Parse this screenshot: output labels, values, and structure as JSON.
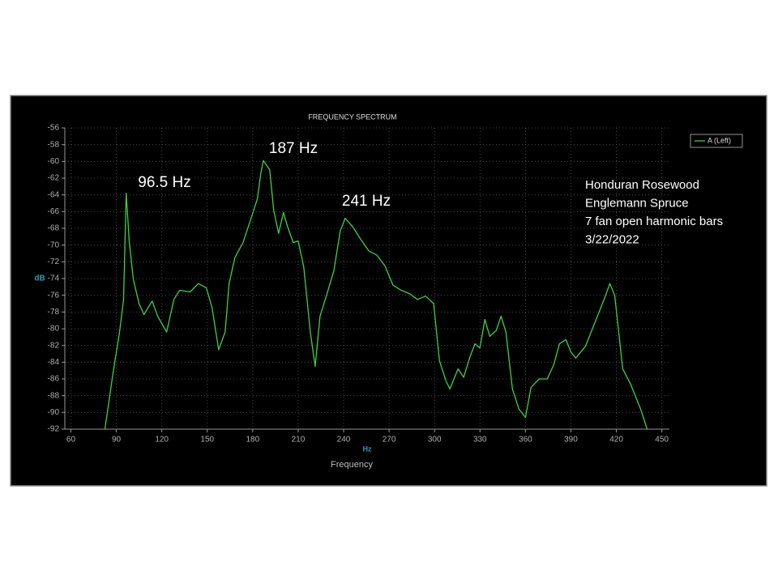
{
  "chart_data": {
    "type": "line",
    "title": "FREQUENCY SPECTRUM",
    "xlabel": "Frequency",
    "xunit": "Hz",
    "ylabel": "dB",
    "xlim": [
      56,
      455
    ],
    "ylim": [
      -92,
      -56
    ],
    "xticks": [
      60,
      90,
      120,
      150,
      180,
      210,
      240,
      270,
      300,
      330,
      360,
      390,
      420,
      450
    ],
    "yticks": [
      -56,
      -58,
      -60,
      -62,
      -64,
      -66,
      -68,
      -70,
      -72,
      -74,
      -76,
      -78,
      -80,
      -82,
      -84,
      -86,
      -88,
      -90,
      -92
    ],
    "grid": true,
    "legend": "right",
    "series": [
      {
        "name": "A (Left)",
        "color": "#3fd13f",
        "x": [
          82.5,
          87.9,
          92.1,
          94.8,
          96.5,
          98.6,
          101.2,
          105,
          108.2,
          113.6,
          117.3,
          123.2,
          128,
          131.8,
          138.7,
          144.1,
          149.4,
          153.2,
          157.5,
          161.8,
          164.4,
          168.2,
          173.6,
          178.9,
          183.2,
          185.3,
          187,
          191.2,
          193.9,
          197.1,
          200.3,
          203,
          206.8,
          210,
          213.7,
          218,
          221.2,
          224.4,
          228.7,
          233.5,
          237.8,
          241,
          245.9,
          251.2,
          256.6,
          261.9,
          267.3,
          272.6,
          278,
          283.4,
          288.7,
          294.1,
          299.4,
          303.2,
          307.5,
          310.1,
          315.5,
          319.2,
          323.5,
          326.7,
          329.9,
          333.2,
          336.4,
          340.7,
          343.9,
          347.1,
          351.4,
          355.7,
          360,
          363.7,
          369.1,
          374.4,
          378.7,
          382.5,
          386.7,
          390,
          393.2,
          399.6,
          405.5,
          411.9,
          415.7,
          418.9,
          424.2,
          429.6,
          436,
          440.3
        ],
        "values": [
          -92,
          -85.2,
          -80.4,
          -76.5,
          -63.8,
          -69.7,
          -74.1,
          -77,
          -78.3,
          -76.7,
          -78.5,
          -80.4,
          -76.5,
          -75.4,
          -75.6,
          -74.6,
          -75.1,
          -77.5,
          -82.5,
          -80.4,
          -74.6,
          -71.5,
          -69.7,
          -66.8,
          -64.4,
          -61.5,
          -59.9,
          -61,
          -65.9,
          -68.6,
          -66.1,
          -67.8,
          -69.7,
          -69.5,
          -72.6,
          -80.4,
          -84.5,
          -78.5,
          -76,
          -73.1,
          -68.3,
          -66.8,
          -67.8,
          -69.3,
          -70.7,
          -71.2,
          -72.5,
          -74.8,
          -75.4,
          -75.8,
          -76.5,
          -76.1,
          -77,
          -83.8,
          -86.2,
          -87.2,
          -84.8,
          -85.8,
          -83.3,
          -81.8,
          -82.3,
          -78.9,
          -80.9,
          -80.2,
          -78.5,
          -80.4,
          -87.2,
          -89.6,
          -90.6,
          -87,
          -86,
          -86,
          -84.3,
          -81.8,
          -81.3,
          -82.8,
          -83.5,
          -82.1,
          -79.4,
          -76.5,
          -74.6,
          -76,
          -84.8,
          -86.7,
          -89.6,
          -92
        ]
      }
    ],
    "annotations": [
      "96.5 Hz",
      "187 Hz",
      "241 Hz"
    ],
    "note": [
      "Honduran Rosewood",
      "Englemann Spruce",
      "7 fan open harmonic bars",
      "3/22/2022"
    ]
  }
}
